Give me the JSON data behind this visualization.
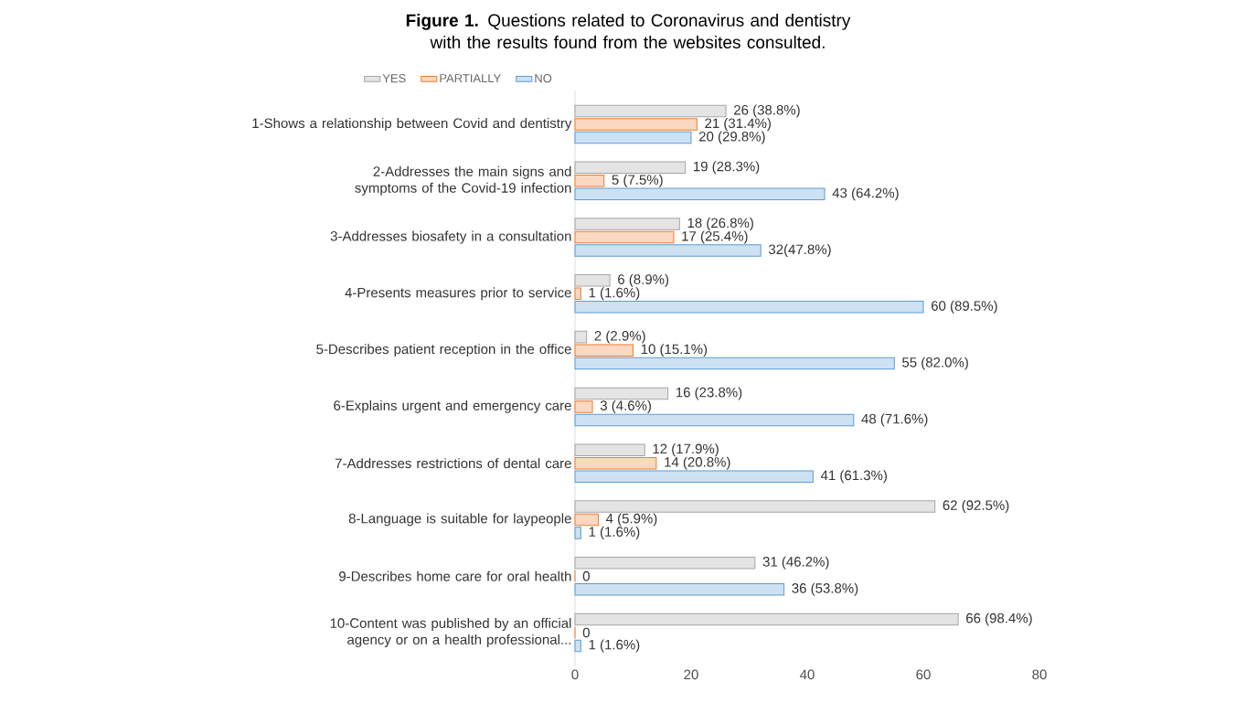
{
  "chart_data": {
    "type": "bar",
    "orientation": "horizontal",
    "title": "**Figure 1.** Questions related to Coronavirus and dentistry with the results found from the websites consulted.",
    "categories": [
      "1-Shows a relationship between Covid and dentistry",
      "2-Addresses the main signs and symptoms of the Covid-19 infection",
      "3-Addresses biosafety in a consultation",
      "4-Presents measures prior to service",
      "5-Describes patient reception in the office",
      "6-Explains urgent and emergency care",
      "7-Addresses restrictions of dental care",
      "8-Language is suitable for laypeople",
      "9-Describes home care for oral health",
      "10-Content was published by an official agency or on a health professional..."
    ],
    "series": [
      {
        "name": "YES",
        "color": "#a5a5a5",
        "values": [
          26,
          19,
          18,
          6,
          2,
          16,
          12,
          62,
          31,
          66
        ],
        "value_labels": [
          "26 (38.8%)",
          "19 (28.3%)",
          "18 (26.8%)",
          "6 (8.9%)",
          "2 (2.9%)",
          "16 (23.8%)",
          "12 (17.9%)",
          "62 (92.5%)",
          "31 (46.2%)",
          "66 (98.4%)"
        ]
      },
      {
        "name": "PARTIALLY",
        "color": "#ed7d31",
        "values": [
          21,
          5,
          17,
          1,
          10,
          3,
          14,
          4,
          0,
          0
        ],
        "value_labels": [
          "21 (31.4%)",
          "5 (7.5%)",
          "17 (25.4%)",
          "1 (1.6%)",
          "10 (15.1%)",
          "3 (4.6%)",
          "14 (20.8%)",
          "4 (5.9%)",
          "0",
          "0"
        ]
      },
      {
        "name": "NO",
        "color": "#5b9bd5",
        "values": [
          20,
          43,
          32,
          60,
          55,
          48,
          41,
          1,
          36,
          1
        ],
        "value_labels": [
          "20 (29.8%)",
          "43 (64.2%)",
          "32(47.8%)",
          "60 (89.5%)",
          "55 (82.0%)",
          "48 (71.6%)",
          "41 (61.3%)",
          "1 (1.6%)",
          "36 (53.8%)",
          "1 (1.6%)"
        ]
      }
    ],
    "xlim": [
      0,
      80
    ],
    "xticks": [
      0,
      20,
      40,
      60,
      80
    ],
    "grid": false,
    "legend": "top"
  }
}
